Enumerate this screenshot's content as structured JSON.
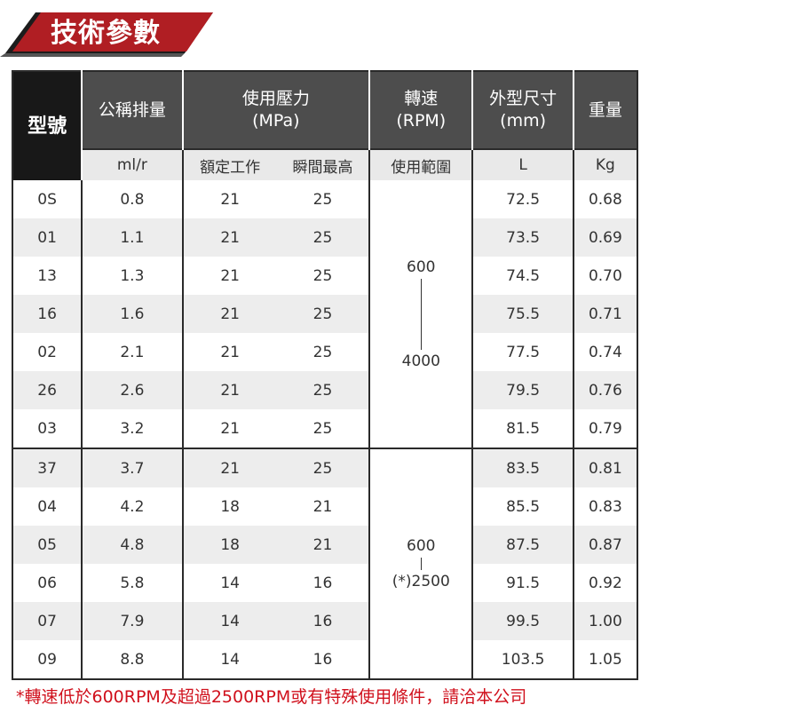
{
  "title": "技術參數",
  "headers": {
    "model": "型號",
    "displacement": "公稱排量",
    "pressure": "使用壓力",
    "pressure_unit": "(MPa)",
    "speed": "轉速",
    "speed_unit": "(RPM)",
    "dimension": "外型尺寸",
    "dimension_unit": "(mm)",
    "weight": "重量"
  },
  "subheaders": {
    "displacement": "ml/r",
    "rated": "額定工作",
    "peak": "瞬間最高",
    "speed": "使用範圍",
    "dimension": "L",
    "weight": "Kg"
  },
  "rows": [
    {
      "model": "0S",
      "displacement": "0.8",
      "rated": "21",
      "peak": "25",
      "length": "72.5",
      "weight": "0.68"
    },
    {
      "model": "01",
      "displacement": "1.1",
      "rated": "21",
      "peak": "25",
      "length": "73.5",
      "weight": "0.69"
    },
    {
      "model": "13",
      "displacement": "1.3",
      "rated": "21",
      "peak": "25",
      "length": "74.5",
      "weight": "0.70"
    },
    {
      "model": "16",
      "displacement": "1.6",
      "rated": "21",
      "peak": "25",
      "length": "75.5",
      "weight": "0.71"
    },
    {
      "model": "02",
      "displacement": "2.1",
      "rated": "21",
      "peak": "25",
      "length": "77.5",
      "weight": "0.74"
    },
    {
      "model": "26",
      "displacement": "2.6",
      "rated": "21",
      "peak": "25",
      "length": "79.5",
      "weight": "0.76"
    },
    {
      "model": "03",
      "displacement": "3.2",
      "rated": "21",
      "peak": "25",
      "length": "81.5",
      "weight": "0.79"
    },
    {
      "model": "37",
      "displacement": "3.7",
      "rated": "21",
      "peak": "25",
      "length": "83.5",
      "weight": "0.81"
    },
    {
      "model": "04",
      "displacement": "4.2",
      "rated": "18",
      "peak": "21",
      "length": "85.5",
      "weight": "0.83"
    },
    {
      "model": "05",
      "displacement": "4.8",
      "rated": "18",
      "peak": "21",
      "length": "87.5",
      "weight": "0.87"
    },
    {
      "model": "06",
      "displacement": "5.8",
      "rated": "14",
      "peak": "16",
      "length": "91.5",
      "weight": "0.92"
    },
    {
      "model": "07",
      "displacement": "7.9",
      "rated": "14",
      "peak": "16",
      "length": "99.5",
      "weight": "1.00"
    },
    {
      "model": "09",
      "displacement": "8.8",
      "rated": "14",
      "peak": "16",
      "length": "103.5",
      "weight": "1.05"
    }
  ],
  "speed_ranges": [
    {
      "min": "600",
      "max": "4000"
    },
    {
      "min": "600",
      "max": "(*)2500"
    }
  ],
  "footnote": "*轉速低於600RPM及超過2500RPM或有特殊使用條件，請洽本公司",
  "colors": {
    "banner_red": "#b01e23",
    "banner_dark": "#1c1c1c",
    "header_gray": "#4d4d4d",
    "model_header_black": "#181818",
    "footnote_red": "#d0101c"
  }
}
